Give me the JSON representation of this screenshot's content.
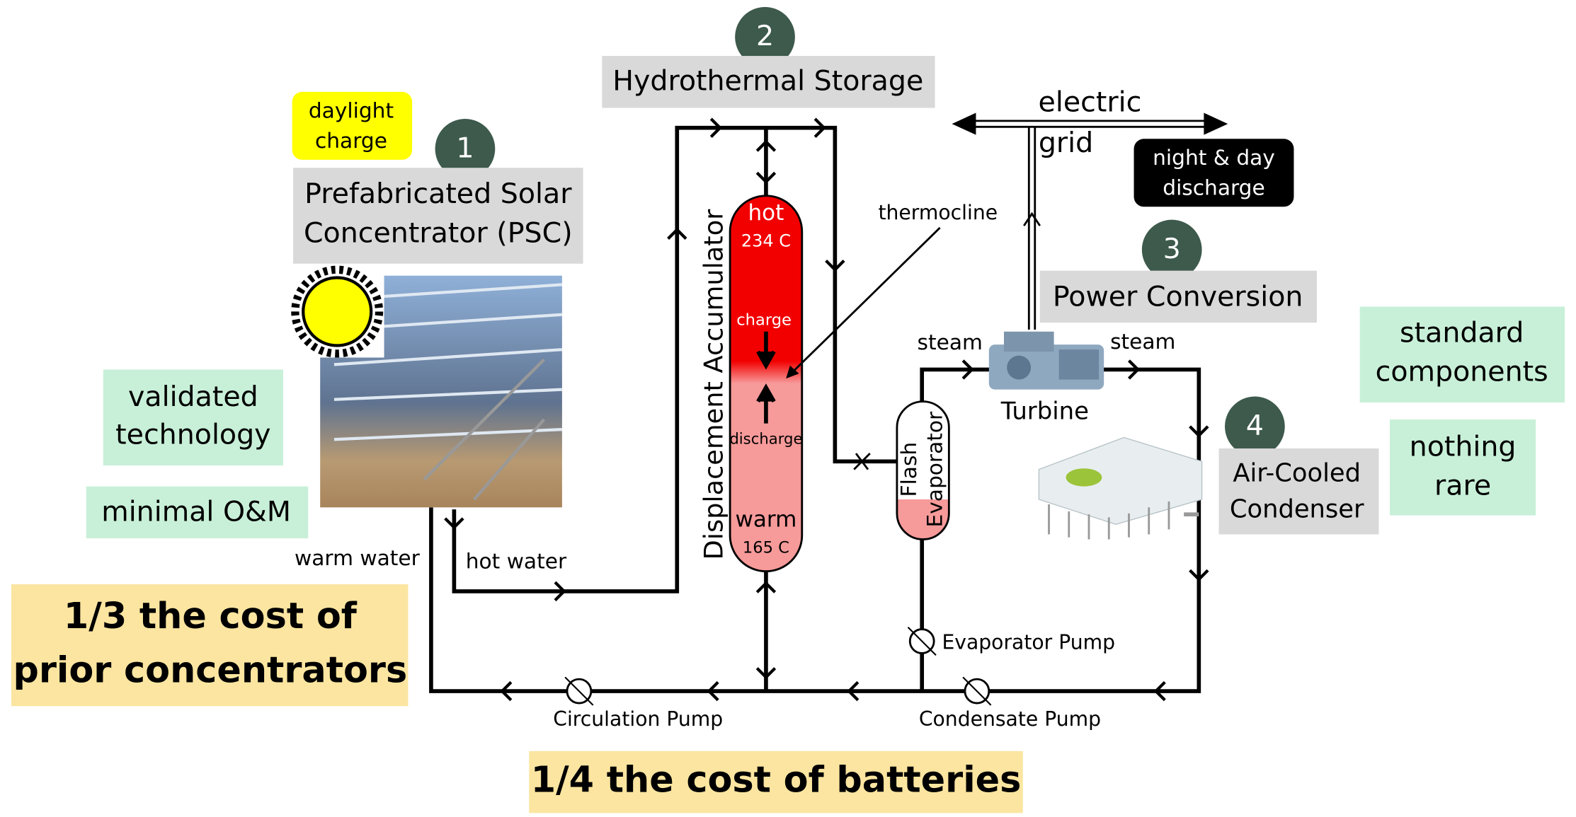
{
  "components": [
    {
      "number": "1",
      "label": [
        "Prefabricated Solar",
        "Concentrator (PSC)"
      ]
    },
    {
      "number": "2",
      "label": [
        "Hydrothermal Storage"
      ]
    },
    {
      "number": "3",
      "label": [
        "Power Conversion"
      ]
    },
    {
      "number": "4",
      "label": [
        "Air-Cooled",
        "Condenser"
      ]
    }
  ],
  "modes": {
    "charge": [
      "daylight",
      "charge"
    ],
    "discharge": [
      "night & day",
      "discharge"
    ]
  },
  "grid": [
    "electric",
    "grid"
  ],
  "benefits": {
    "solar": [
      [
        "validated",
        "technology"
      ],
      [
        "minimal O&M"
      ]
    ],
    "power": [
      [
        "standard",
        "components"
      ],
      [
        "nothing",
        "rare"
      ]
    ],
    "cost": [
      [
        "1/3 the cost of",
        "prior concentrators"
      ],
      [
        "1/4 the cost of batteries"
      ]
    ]
  },
  "accumulator": {
    "name": "Displacement Accumulator",
    "hot": "hot",
    "hot_temp": "234 C",
    "charge": "charge",
    "discharge": "discharge",
    "warm": "warm",
    "warm_temp": "165 C",
    "thermocline": "thermocline"
  },
  "evaporator": [
    "Flash",
    "Evaporator"
  ],
  "turbine": {
    "name": "Turbine",
    "steam_in": "steam",
    "steam_out": "steam"
  },
  "flows": {
    "warm": "warm water",
    "hot": "hot water"
  },
  "pumps": [
    "Circulation Pump",
    "Evaporator Pump",
    "Condensate Pump"
  ]
}
